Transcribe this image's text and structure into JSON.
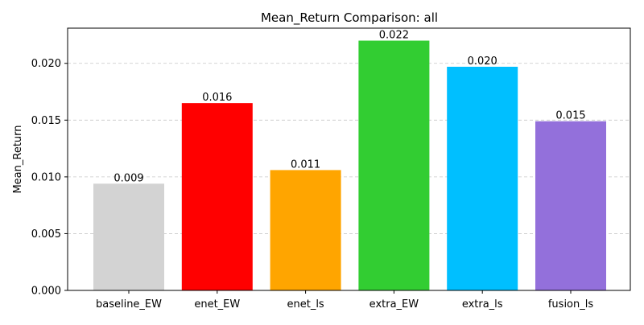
{
  "chart_data": {
    "type": "bar",
    "title": "Mean_Return Comparison: all",
    "xlabel": "",
    "ylabel": "Mean_Return",
    "categories": [
      "baseline_EW",
      "enet_EW",
      "enet_ls",
      "extra_EW",
      "extra_ls",
      "fusion_ls"
    ],
    "values": [
      0.0094,
      0.0165,
      0.0106,
      0.022,
      0.0197,
      0.0149
    ],
    "data_labels": [
      "0.009",
      "0.016",
      "0.011",
      "0.022",
      "0.020",
      "0.015"
    ],
    "colors": [
      "#d3d3d3",
      "#ff0000",
      "#ffa500",
      "#32cd32",
      "#00bfff",
      "#9370db"
    ],
    "ylim": [
      0,
      0.0231
    ],
    "yticks": [
      0.0,
      0.005,
      0.01,
      0.015,
      0.02
    ],
    "ytick_labels": [
      "0.000",
      "0.005",
      "0.010",
      "0.015",
      "0.020"
    ],
    "grid": "y-dashed",
    "legend": "none"
  }
}
